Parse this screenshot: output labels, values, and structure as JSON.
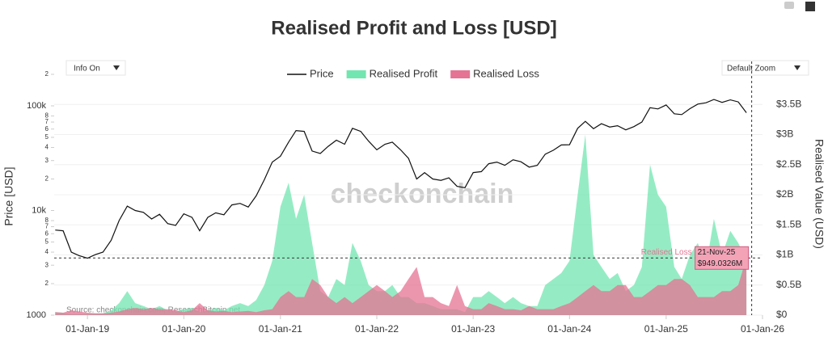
{
  "chart_data": {
    "type": "line",
    "title": "Realised Profit and Loss [USD]",
    "buttons": [
      "Info On",
      "Default Zoom"
    ],
    "watermark": "checkonchain",
    "source": "Source: checkonchain.com, ResearchBitcoin.net",
    "ylabel": "Price [USD]",
    "y2label": "Realised Value (USD)",
    "log_y": true,
    "grid": true,
    "xlim": [
      "2018-08-28",
      "2026-01-01"
    ],
    "xticks": [
      {
        "value": "2019-01-01",
        "label": "01-Jan-19"
      },
      {
        "value": "2020-01-01",
        "label": "01-Jan-20"
      },
      {
        "value": "2021-01-01",
        "label": "01-Jan-21"
      },
      {
        "value": "2022-01-01",
        "label": "01-Jan-22"
      },
      {
        "value": "2023-01-01",
        "label": "01-Jan-23"
      },
      {
        "value": "2024-01-01",
        "label": "01-Jan-24"
      },
      {
        "value": "2025-01-01",
        "label": "01-Jan-25"
      },
      {
        "value": "2026-01-01",
        "label": "01-Jan-26"
      }
    ],
    "ylim": [
      1000,
      200000
    ],
    "yticks": [
      1000,
      {
        "value": 2000,
        "label": "2"
      },
      {
        "value": 3000,
        "label": "3"
      },
      {
        "value": 4000,
        "label": "4"
      },
      {
        "value": 5000,
        "label": "5"
      },
      {
        "value": 6000,
        "label": "6"
      },
      {
        "value": 7000,
        "label": "7"
      },
      {
        "value": 8000,
        "label": "8"
      },
      {
        "value": 10000,
        "label": "10k"
      },
      {
        "value": 20000,
        "label": "2"
      },
      {
        "value": 30000,
        "label": "3"
      },
      {
        "value": 40000,
        "label": "4"
      },
      {
        "value": 50000,
        "label": "5"
      },
      {
        "value": 60000,
        "label": "6"
      },
      {
        "value": 70000,
        "label": "7"
      },
      {
        "value": 80000,
        "label": "8"
      },
      {
        "value": 100000,
        "label": "100k"
      },
      {
        "value": 200000,
        "label": "2"
      }
    ],
    "y2lim": [
      0,
      4000000000.0
    ],
    "y2ticks": [
      {
        "value": 0,
        "label": "$0"
      },
      {
        "value": 500000000.0,
        "label": "$0.5B"
      },
      {
        "value": 1000000000.0,
        "label": "$1B"
      },
      {
        "value": 1500000000.0,
        "label": "$1.5B"
      },
      {
        "value": 2000000000.0,
        "label": "$2B"
      },
      {
        "value": 2500000000.0,
        "label": "$2.5B"
      },
      {
        "value": 3000000000.0,
        "label": "$3B"
      },
      {
        "value": 3500000000.0,
        "label": "$3.5B"
      }
    ],
    "x": [
      "2018-09-01",
      "2018-10-01",
      "2018-11-01",
      "2018-12-01",
      "2019-01-01",
      "2019-02-01",
      "2019-03-01",
      "2019-04-01",
      "2019-05-01",
      "2019-06-01",
      "2019-07-01",
      "2019-08-01",
      "2019-09-01",
      "2019-10-01",
      "2019-11-01",
      "2019-12-01",
      "2020-01-01",
      "2020-02-01",
      "2020-03-01",
      "2020-04-01",
      "2020-05-01",
      "2020-06-01",
      "2020-07-01",
      "2020-08-01",
      "2020-09-01",
      "2020-10-01",
      "2020-11-01",
      "2020-12-01",
      "2021-01-01",
      "2021-02-01",
      "2021-03-01",
      "2021-04-01",
      "2021-05-01",
      "2021-06-01",
      "2021-07-01",
      "2021-08-01",
      "2021-09-01",
      "2021-10-01",
      "2021-11-01",
      "2021-12-01",
      "2022-01-01",
      "2022-02-01",
      "2022-03-01",
      "2022-04-01",
      "2022-05-01",
      "2022-06-01",
      "2022-07-01",
      "2022-08-01",
      "2022-09-01",
      "2022-10-01",
      "2022-11-01",
      "2022-12-01",
      "2023-01-01",
      "2023-02-01",
      "2023-03-01",
      "2023-04-01",
      "2023-05-01",
      "2023-06-01",
      "2023-07-01",
      "2023-08-01",
      "2023-09-01",
      "2023-10-01",
      "2023-11-01",
      "2023-12-01",
      "2024-01-01",
      "2024-02-01",
      "2024-03-01",
      "2024-04-01",
      "2024-05-01",
      "2024-06-01",
      "2024-07-01",
      "2024-08-01",
      "2024-09-01",
      "2024-10-01",
      "2024-11-01",
      "2024-12-01",
      "2025-01-01",
      "2025-02-01",
      "2025-03-01",
      "2025-04-01",
      "2025-05-01",
      "2025-06-01",
      "2025-07-01",
      "2025-08-01",
      "2025-09-01",
      "2025-10-01",
      "2025-11-01"
    ],
    "series": [
      {
        "name": "Price",
        "kind": "line",
        "axis": "y",
        "color": "#111111",
        "values": [
          6500,
          6400,
          4000,
          3700,
          3500,
          3800,
          4000,
          5200,
          8000,
          11000,
          10000,
          9600,
          8300,
          9200,
          7500,
          7200,
          9300,
          8600,
          6400,
          8600,
          9500,
          9100,
          11300,
          11700,
          10800,
          13800,
          19700,
          29000,
          33000,
          45000,
          58000,
          57000,
          37000,
          35000,
          41000,
          47000,
          43000,
          61000,
          57000,
          46000,
          38000,
          43000,
          45000,
          38000,
          31500,
          20000,
          23000,
          20000,
          19400,
          20500,
          17000,
          16500,
          23000,
          23500,
          28000,
          29000,
          27000,
          30500,
          29200,
          26000,
          27000,
          34500,
          37700,
          42300,
          42500,
          61000,
          71000,
          60600,
          67500,
          62700,
          64600,
          59000,
          63300,
          70000,
          96000,
          93400,
          102000,
          84000,
          82500,
          94000,
          104000,
          107000,
          115000,
          108000,
          114000,
          109000,
          86000
        ]
      },
      {
        "name": "Realised Profit",
        "kind": "area",
        "axis": "y2",
        "color": "#72e6b0",
        "values": [
          50000000.0,
          40000000.0,
          20000000.0,
          20000000.0,
          20000000.0,
          30000000.0,
          30000000.0,
          80000000.0,
          200000000.0,
          400000000.0,
          200000000.0,
          150000000.0,
          100000000.0,
          150000000.0,
          80000000.0,
          60000000.0,
          100000000.0,
          120000000.0,
          50000000.0,
          80000000.0,
          120000000.0,
          80000000.0,
          150000000.0,
          200000000.0,
          150000000.0,
          250000000.0,
          500000000.0,
          900000000.0,
          1800000000.0,
          2200000000.0,
          1600000000.0,
          2000000000.0,
          1200000000.0,
          400000000.0,
          300000000.0,
          600000000.0,
          500000000.0,
          1200000000.0,
          900000000.0,
          500000000.0,
          400000000.0,
          400000000.0,
          500000000.0,
          300000000.0,
          300000000.0,
          200000000.0,
          200000000.0,
          150000000.0,
          100000000.0,
          100000000.0,
          100000000.0,
          50000000.0,
          300000000.0,
          300000000.0,
          400000000.0,
          300000000.0,
          200000000.0,
          300000000.0,
          200000000.0,
          150000000.0,
          150000000.0,
          500000000.0,
          600000000.0,
          700000000.0,
          900000000.0,
          2000000000.0,
          3000000000.0,
          1000000000.0,
          800000000.0,
          600000000.0,
          700000000.0,
          400000000.0,
          500000000.0,
          800000000.0,
          2500000000.0,
          2000000000.0,
          1800000000.0,
          800000000.0,
          600000000.0,
          1000000000.0,
          1200000000.0,
          800000000.0,
          1600000000.0,
          1000000000.0,
          1400000000.0,
          1200000000.0,
          900000000.0
        ]
      },
      {
        "name": "Realised Loss",
        "kind": "area",
        "axis": "y2",
        "color": "#e57393",
        "values": [
          50000000.0,
          40000000.0,
          80000000.0,
          60000000.0,
          40000000.0,
          30000000.0,
          30000000.0,
          40000000.0,
          60000000.0,
          100000000.0,
          120000000.0,
          100000000.0,
          120000000.0,
          100000000.0,
          100000000.0,
          80000000.0,
          50000000.0,
          80000000.0,
          200000000.0,
          80000000.0,
          60000000.0,
          70000000.0,
          50000000.0,
          60000000.0,
          70000000.0,
          50000000.0,
          80000000.0,
          100000000.0,
          300000000.0,
          400000000.0,
          300000000.0,
          300000000.0,
          600000000.0,
          500000000.0,
          300000000.0,
          200000000.0,
          300000000.0,
          200000000.0,
          300000000.0,
          400000000.0,
          500000000.0,
          400000000.0,
          300000000.0,
          400000000.0,
          600000000.0,
          800000000.0,
          300000000.0,
          300000000.0,
          200000000.0,
          150000000.0,
          500000000.0,
          150000000.0,
          100000000.0,
          100000000.0,
          200000000.0,
          150000000.0,
          100000000.0,
          100000000.0,
          80000000.0,
          150000000.0,
          100000000.0,
          100000000.0,
          100000000.0,
          150000000.0,
          200000000.0,
          300000000.0,
          400000000.0,
          500000000.0,
          400000000.0,
          400000000.0,
          500000000.0,
          500000000.0,
          300000000.0,
          300000000.0,
          400000000.0,
          500000000.0,
          500000000.0,
          600000000.0,
          600000000.0,
          500000000.0,
          300000000.0,
          300000000.0,
          300000000.0,
          400000000.0,
          400000000.0,
          500000000.0,
          950000000.0
        ]
      }
    ],
    "tooltip": {
      "x": "2025-11-21",
      "x_label": "21-Nov-25",
      "value": 949032600,
      "value_label": "$949.0326M"
    }
  }
}
